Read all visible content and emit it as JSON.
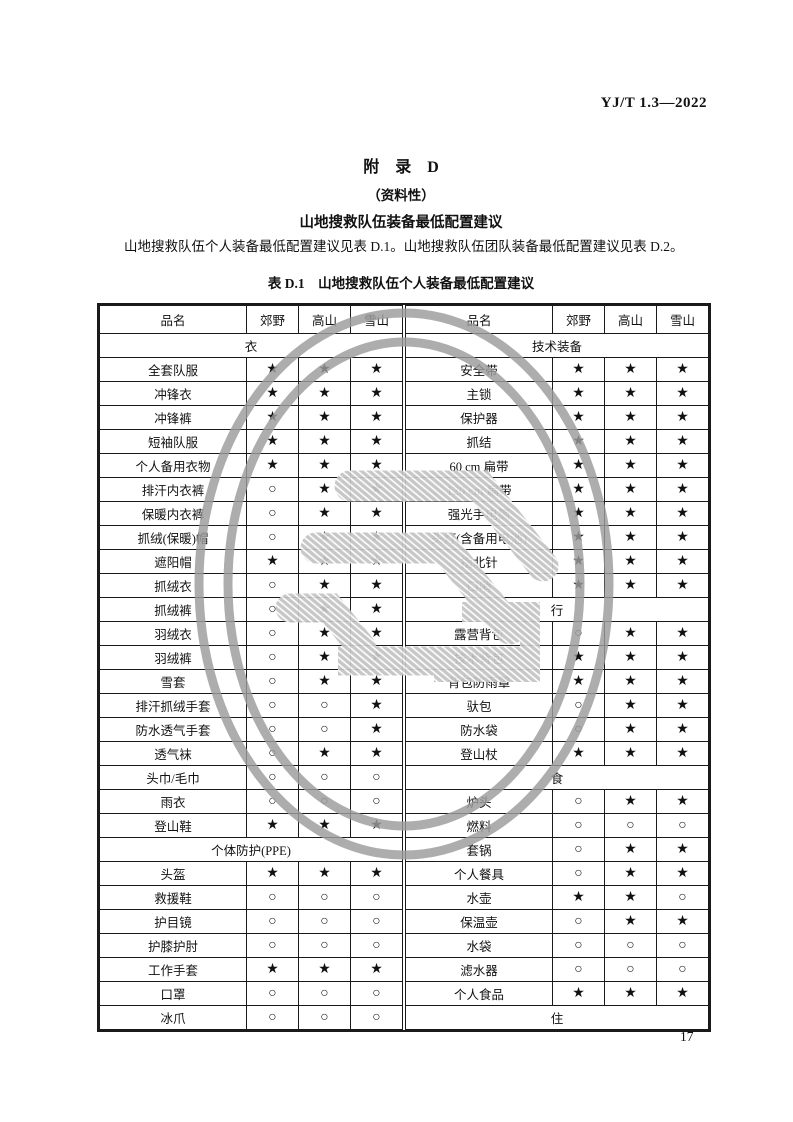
{
  "doc_code": "YJ/T 1.3—2022",
  "appendix": {
    "title": "附　录　D",
    "type_note": "（资料性）",
    "heading": "山地搜救队伍装备最低配置建议"
  },
  "intro_paragraph": "山地搜救队伍个人装备最低配置建议见表 D.1。山地搜救队伍团队装备最低配置建议见表 D.2。",
  "table_caption": "表 D.1　山地搜救队伍个人装备最低配置建议",
  "page_number": "17",
  "symbols": {
    "required": "★",
    "optional": "○"
  },
  "watermark": {
    "shape": "double-ring-ellipse-stamp",
    "color": "#9c9c9c"
  },
  "table": {
    "columns": [
      "品名",
      "郊野",
      "高山",
      "雪山"
    ],
    "left_rows": [
      {
        "section": "衣"
      },
      {
        "name": "全套队服",
        "v": [
          "★",
          "★",
          "★"
        ]
      },
      {
        "name": "冲锋衣",
        "v": [
          "★",
          "★",
          "★"
        ]
      },
      {
        "name": "冲锋裤",
        "v": [
          "★",
          "★",
          "★"
        ]
      },
      {
        "name": "短袖队服",
        "v": [
          "★",
          "★",
          "★"
        ]
      },
      {
        "name": "个人备用衣物",
        "v": [
          "★",
          "★",
          "★"
        ]
      },
      {
        "name": "排汗内衣裤",
        "v": [
          "○",
          "★",
          "★"
        ]
      },
      {
        "name": "保暖内衣裤",
        "v": [
          "○",
          "★",
          "★"
        ]
      },
      {
        "name": "抓绒(保暖)帽",
        "v": [
          "○",
          "★",
          "★"
        ]
      },
      {
        "name": "遮阳帽",
        "v": [
          "★",
          "★",
          "★"
        ]
      },
      {
        "name": "抓绒衣",
        "v": [
          "○",
          "★",
          "★"
        ]
      },
      {
        "name": "抓绒裤",
        "v": [
          "○",
          "★",
          "★"
        ]
      },
      {
        "name": "羽绒衣",
        "v": [
          "○",
          "★",
          "★"
        ]
      },
      {
        "name": "羽绒裤",
        "v": [
          "○",
          "★",
          "★"
        ]
      },
      {
        "name": "雪套",
        "v": [
          "○",
          "★",
          "★"
        ]
      },
      {
        "name": "排汗抓绒手套",
        "v": [
          "○",
          "○",
          "★"
        ]
      },
      {
        "name": "防水透气手套",
        "v": [
          "○",
          "○",
          "★"
        ]
      },
      {
        "name": "透气袜",
        "v": [
          "○",
          "★",
          "★"
        ]
      },
      {
        "name": "头巾/毛巾",
        "v": [
          "○",
          "○",
          "○"
        ]
      },
      {
        "name": "雨衣",
        "v": [
          "○",
          "○",
          "○"
        ]
      },
      {
        "name": "登山鞋",
        "v": [
          "★",
          "★",
          "★"
        ]
      },
      {
        "section": "个体防护(PPE)"
      },
      {
        "name": "头盔",
        "v": [
          "★",
          "★",
          "★"
        ]
      },
      {
        "name": "救援鞋",
        "v": [
          "○",
          "○",
          "○"
        ]
      },
      {
        "name": "护目镜",
        "v": [
          "○",
          "○",
          "○"
        ]
      },
      {
        "name": "护膝护肘",
        "v": [
          "○",
          "○",
          "○"
        ]
      },
      {
        "name": "工作手套",
        "v": [
          "★",
          "★",
          "★"
        ]
      },
      {
        "name": "口罩",
        "v": [
          "○",
          "○",
          "○"
        ]
      },
      {
        "name": "冰爪",
        "v": [
          "○",
          "○",
          "○"
        ]
      }
    ],
    "right_rows": [
      {
        "section": "技术装备"
      },
      {
        "name": "安全带",
        "v": [
          "★",
          "★",
          "★"
        ]
      },
      {
        "name": "主锁",
        "v": [
          "★",
          "★",
          "★"
        ]
      },
      {
        "name": "保护器",
        "v": [
          "★",
          "★",
          "★"
        ]
      },
      {
        "name": "抓结",
        "v": [
          "★",
          "★",
          "★"
        ]
      },
      {
        "name": "60 cm 扁带",
        "v": [
          "★",
          "★",
          "★"
        ]
      },
      {
        "name": "120 cm 扁带",
        "v": [
          "★",
          "★",
          "★"
        ]
      },
      {
        "name": "强光手电筒",
        "v": [
          "★",
          "★",
          "★"
        ]
      },
      {
        "name": "头灯(含备用电池)",
        "v": [
          "★",
          "★",
          "★"
        ]
      },
      {
        "name": "指北针",
        "v": [
          "★",
          "★",
          "★"
        ]
      },
      {
        "name": "口哨",
        "v": [
          "★",
          "★",
          "★"
        ]
      },
      {
        "section": "行"
      },
      {
        "name": "露营背包",
        "v": [
          "○",
          "★",
          "★"
        ]
      },
      {
        "name": "技术背包",
        "v": [
          "★",
          "★",
          "★"
        ]
      },
      {
        "name": "背包防雨罩",
        "v": [
          "★",
          "★",
          "★"
        ]
      },
      {
        "name": "驮包",
        "v": [
          "○",
          "★",
          "★"
        ]
      },
      {
        "name": "防水袋",
        "v": [
          "○",
          "★",
          "★"
        ]
      },
      {
        "name": "登山杖",
        "v": [
          "★",
          "★",
          "★"
        ]
      },
      {
        "section": "食"
      },
      {
        "name": "炉头",
        "v": [
          "○",
          "★",
          "★"
        ]
      },
      {
        "name": "燃料",
        "v": [
          "○",
          "○",
          "○"
        ]
      },
      {
        "name": "套锅",
        "v": [
          "○",
          "★",
          "★"
        ]
      },
      {
        "name": "个人餐具",
        "v": [
          "○",
          "★",
          "★"
        ]
      },
      {
        "name": "水壶",
        "v": [
          "★",
          "★",
          "○"
        ]
      },
      {
        "name": "保温壶",
        "v": [
          "○",
          "★",
          "★"
        ]
      },
      {
        "name": "水袋",
        "v": [
          "○",
          "○",
          "○"
        ]
      },
      {
        "name": "滤水器",
        "v": [
          "○",
          "○",
          "○"
        ]
      },
      {
        "name": "个人食品",
        "v": [
          "★",
          "★",
          "★"
        ]
      },
      {
        "section": "住"
      }
    ]
  }
}
